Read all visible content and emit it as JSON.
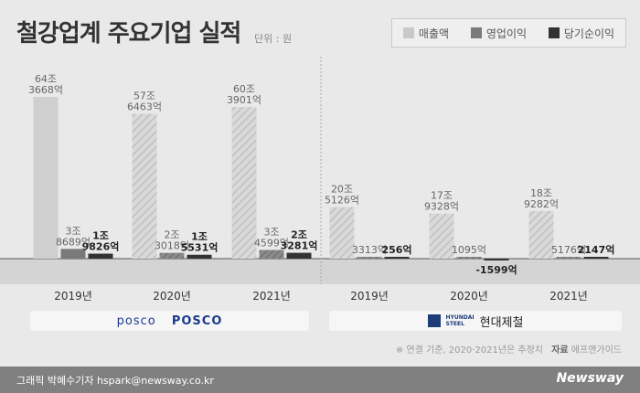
{
  "title": "철강업계 주요기업 실적",
  "unit": "단위 : 원",
  "legend": [
    {
      "name": "매출액",
      "color": "#c9c9c9"
    },
    {
      "name": "영업이익",
      "color": "#7a7a7a"
    },
    {
      "name": "당기순이익",
      "color": "#333333"
    }
  ],
  "chart_data": {
    "type": "bar",
    "categories": [
      "2019년",
      "2020년",
      "2021년",
      "2019년",
      "2020년",
      "2021년"
    ],
    "groups": [
      {
        "name": "POSCO"
      },
      {
        "name": "현대제철"
      }
    ],
    "series": [
      {
        "name": "매출액",
        "values": [
          643668,
          576463,
          603901,
          205126,
          179328,
          189282
        ],
        "labels": [
          "64조 3668억",
          "57조 6463억",
          "60조 3901억",
          "20조 5126억",
          "17조 9328억",
          "18조 9282억"
        ]
      },
      {
        "name": "영업이익",
        "values": [
          38689,
          23018,
          34599,
          3313,
          1095,
          5176
        ],
        "labels": [
          "3조 8689억",
          "2조 3018억",
          "3조 4599억",
          "3313억",
          "1095억",
          "5176억"
        ]
      },
      {
        "name": "당기순이익",
        "values": [
          19826,
          15531,
          23281,
          256,
          -1599,
          2147
        ],
        "labels": [
          "1조 9826억",
          "1조 5531억",
          "2조 3281억",
          "256억",
          "-1599억",
          "2147억"
        ]
      }
    ],
    "hatched_categories": [
      1,
      2,
      3,
      4,
      5
    ],
    "notes": "※ 연결 기준, 2020·2021년은 추정치"
  },
  "companies": {
    "posco_text": "posco",
    "posco_logo": "POSCO",
    "hyundai_text": "현대제철",
    "hyundai_small_1": "HYUNDAI",
    "hyundai_small_2": "STEEL"
  },
  "note": {
    "text": "※ 연결 기준, 2020·2021년은 추정치",
    "source_label": "자료",
    "source": "에프앤가이드"
  },
  "footer": {
    "credit": "그래픽 박혜수기자 hspark@newsway.co.kr",
    "brand": "Newsway"
  }
}
